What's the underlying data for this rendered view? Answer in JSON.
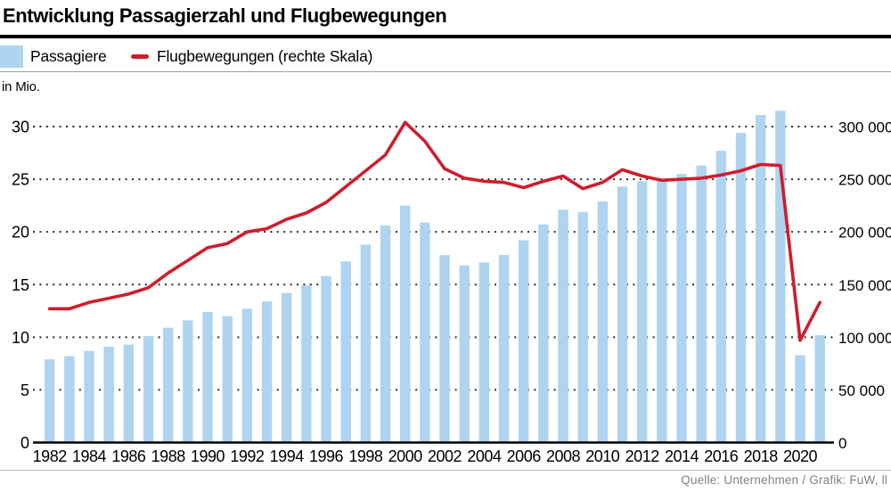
{
  "header": {
    "title": "Entwicklung Passagierzahl und Flugbewegungen"
  },
  "legend": [
    {
      "label": "Passagiere",
      "type": "bar",
      "color": "#aed4f0"
    },
    {
      "label": "Flugbewegungen (rechte Skala)",
      "type": "line",
      "color": "#cf1d2c"
    }
  ],
  "unit_label": "in Mio.",
  "footer": {
    "source": "Quelle: Unternehmen / Grafik: FuW, ll"
  },
  "chart_data": {
    "type": "bar",
    "subtype": "bar+line combo, dual axis",
    "title": "Entwicklung Passagierzahl und Flugbewegungen",
    "categories": [
      1982,
      1983,
      1984,
      1985,
      1986,
      1987,
      1988,
      1989,
      1990,
      1991,
      1992,
      1993,
      1994,
      1995,
      1996,
      1997,
      1998,
      1999,
      2000,
      2001,
      2002,
      2003,
      2004,
      2005,
      2006,
      2007,
      2008,
      2009,
      2010,
      2011,
      2012,
      2013,
      2014,
      2015,
      2016,
      2017,
      2018,
      2019,
      2020,
      2021
    ],
    "series": [
      {
        "name": "Passagiere",
        "type": "bar",
        "axis": "left",
        "color": "#aed4f0",
        "values": [
          7.9,
          8.2,
          8.7,
          9.1,
          9.3,
          10.1,
          10.9,
          11.6,
          12.4,
          12.0,
          12.7,
          13.4,
          14.2,
          14.9,
          15.8,
          17.2,
          18.8,
          20.6,
          22.5,
          20.9,
          17.8,
          16.8,
          17.1,
          17.8,
          19.2,
          20.7,
          22.1,
          21.9,
          22.9,
          24.3,
          24.8,
          24.9,
          25.5,
          26.3,
          27.7,
          29.4,
          31.1,
          31.5,
          8.3,
          10.2
        ]
      },
      {
        "name": "Flugbewegungen (rechte Skala)",
        "type": "line",
        "axis": "right",
        "color": "#cf1d2c",
        "values": [
          127000,
          127000,
          133000,
          137000,
          141000,
          147000,
          161000,
          173000,
          185000,
          189000,
          200000,
          203000,
          212000,
          218000,
          228000,
          243000,
          258000,
          273000,
          304000,
          286000,
          260000,
          251000,
          248000,
          247000,
          242000,
          248000,
          253000,
          241000,
          247000,
          259000,
          253000,
          249000,
          250000,
          251000,
          254000,
          258000,
          264000,
          263000,
          97000,
          133000
        ]
      }
    ],
    "left_axis": {
      "label": "in Mio.",
      "min": 0,
      "max": 30,
      "step": 5,
      "ticks": [
        0,
        5,
        10,
        15,
        20,
        25,
        30
      ]
    },
    "right_axis": {
      "min": 0,
      "max": 300000,
      "step": 50000,
      "tick_labels": [
        "0",
        "50 000",
        "100 000",
        "150 000",
        "200 000",
        "250 000",
        "300 000"
      ]
    },
    "x_tick_years": [
      1982,
      1984,
      1986,
      1988,
      1990,
      1992,
      1994,
      1996,
      1998,
      2000,
      2002,
      2004,
      2006,
      2008,
      2010,
      2012,
      2014,
      2016,
      2018,
      2020
    ],
    "grid": "dotted horizontal gridlines at each left-axis step",
    "legend_position": "top-left"
  }
}
